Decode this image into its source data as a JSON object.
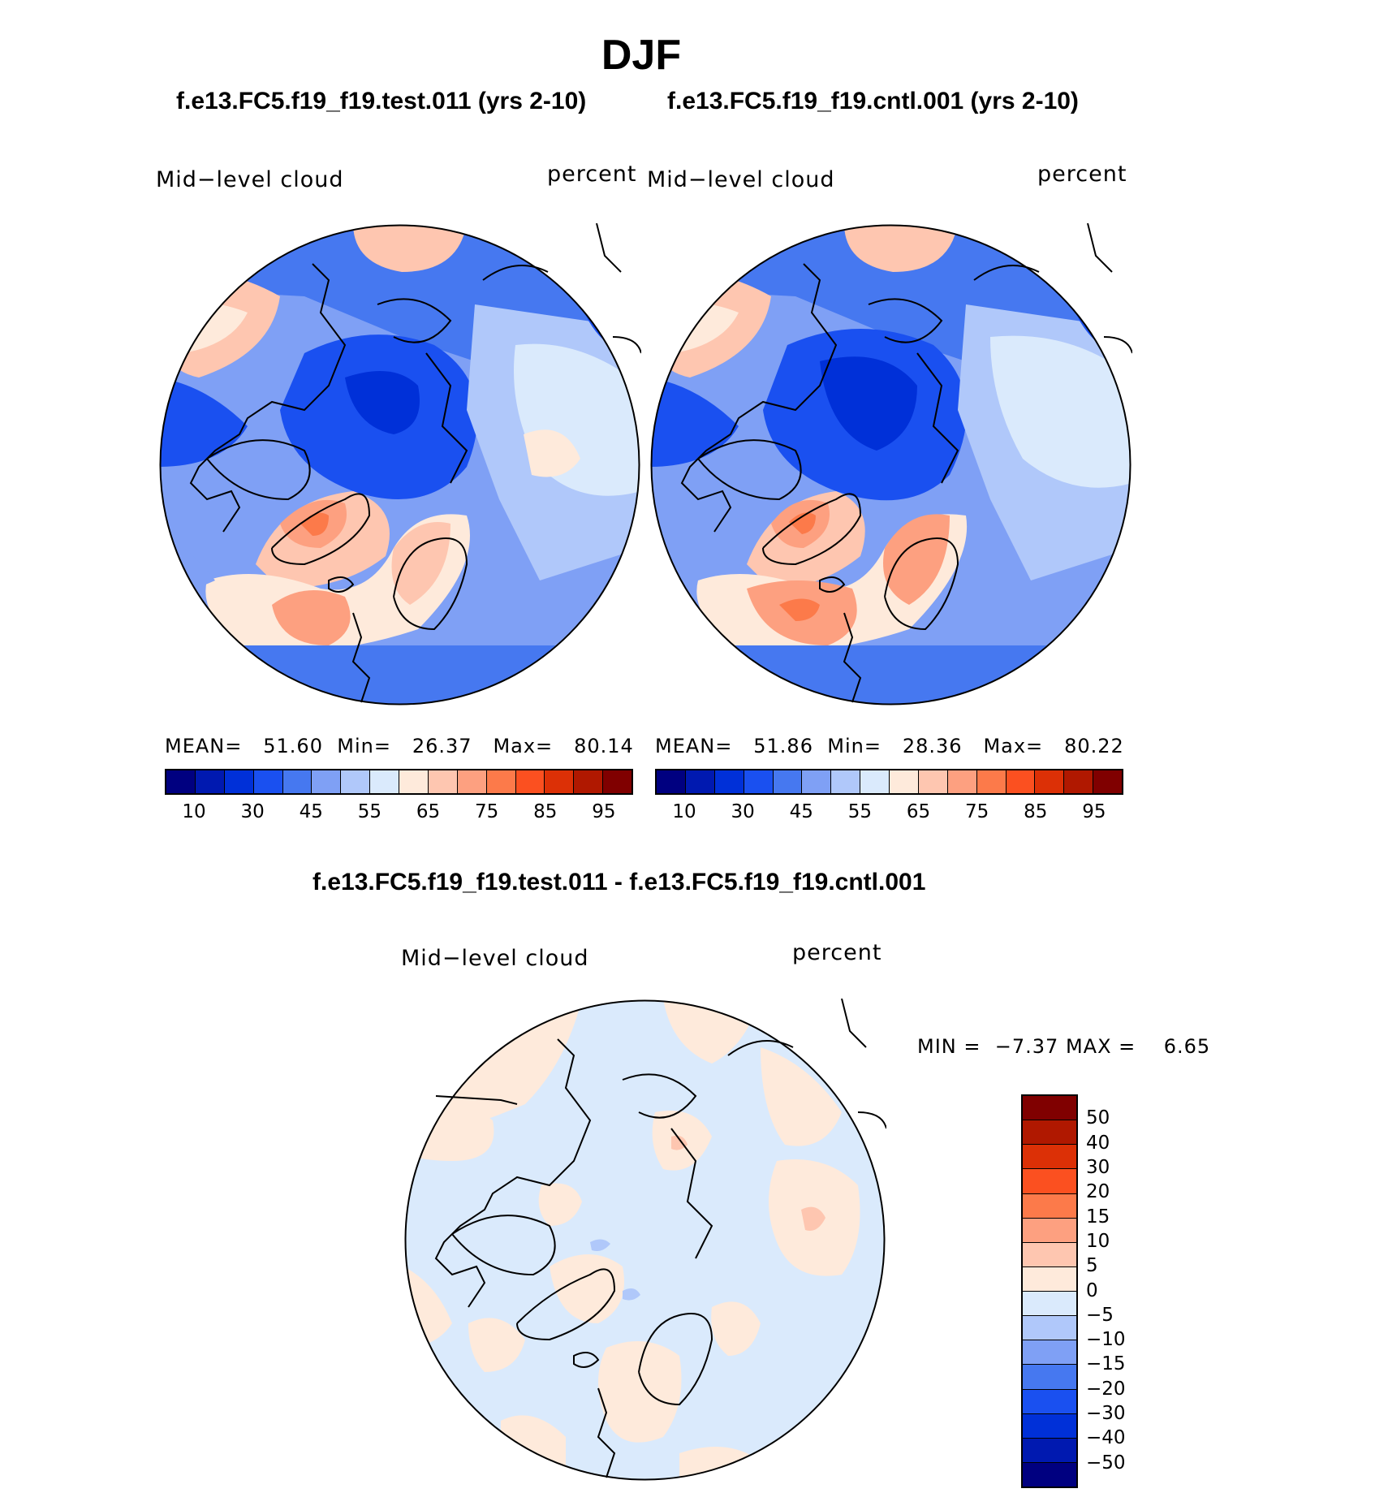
{
  "figure": {
    "season": "DJF",
    "test_title": "f.e13.FC5.f19_f19.test.011 (yrs 2-10)",
    "cntl_title": "f.e13.FC5.f19_f19.cntl.001 (yrs 2-10)",
    "diff_title": "f.e13.FC5.f19_f19.test.011 - f.e13.FC5.f19_f19.cntl.001"
  },
  "panels": {
    "test": {
      "variable": "Mid−level  cloud",
      "units": "percent",
      "mean_label": "MEAN=",
      "mean": "51.60",
      "min_label": "Min=",
      "min": "26.37",
      "max_label": "Max=",
      "max": "80.14"
    },
    "cntl": {
      "variable": "Mid−level  cloud",
      "units": "percent",
      "mean_label": "MEAN=",
      "mean": "51.86",
      "min_label": "Min=",
      "min": "28.36",
      "max_label": "Max=",
      "max": "80.22"
    },
    "diff": {
      "variable": "Mid−level  cloud",
      "units": "percent",
      "min_label": "MIN =",
      "min": "−7.37",
      "max_label": "MAX =",
      "max": "6.65"
    }
  },
  "colorbar_abs": {
    "colors": [
      "#000080",
      "#0019b0",
      "#0030d8",
      "#1a50f0",
      "#4678f0",
      "#7fa0f5",
      "#b0c8fa",
      "#daeafc",
      "#feeadb",
      "#fec6b0",
      "#fda080",
      "#fc7a4a",
      "#fb5020",
      "#dc3006",
      "#b01800",
      "#800000"
    ],
    "ticks": [
      "10",
      "30",
      "45",
      "55",
      "65",
      "75",
      "85",
      "95"
    ]
  },
  "colorbar_diff": {
    "colors": [
      "#800000",
      "#b01800",
      "#dc3006",
      "#fb5020",
      "#fc7a4a",
      "#fda080",
      "#fec6b0",
      "#feeadb",
      "#daeafc",
      "#b0c8fa",
      "#7fa0f5",
      "#4678f0",
      "#1a50f0",
      "#0030d8",
      "#0019b0",
      "#000080"
    ],
    "ticks": [
      "50",
      "40",
      "30",
      "20",
      "15",
      "10",
      "5",
      "0",
      "−5",
      "−10",
      "−15",
      "−20",
      "−30",
      "−40",
      "−50"
    ]
  }
}
